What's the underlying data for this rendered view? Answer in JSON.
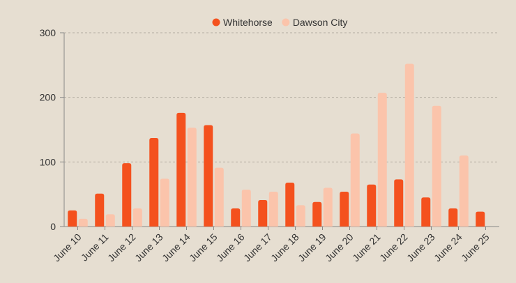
{
  "chart_data": {
    "type": "bar",
    "categories": [
      "June 10",
      "June 11",
      "June 12",
      "June 13",
      "June 14",
      "June 15",
      "June 16",
      "June 17",
      "June 18",
      "June 19",
      "June 20",
      "June 21",
      "June 22",
      "June 23",
      "June 24",
      "June 25"
    ],
    "series": [
      {
        "name": "Whitehorse",
        "color": "#f4511e",
        "values": [
          25,
          51,
          98,
          137,
          176,
          157,
          28,
          41,
          68,
          38,
          54,
          65,
          73,
          45,
          28,
          23
        ]
      },
      {
        "name": "Dawson City",
        "color": "#fbc4ab",
        "values": [
          12,
          19,
          28,
          74,
          153,
          91,
          57,
          54,
          33,
          60,
          144,
          207,
          252,
          187,
          110,
          null
        ]
      }
    ],
    "ylim": [
      0,
      300
    ],
    "yticks": [
      0,
      100,
      200,
      300
    ],
    "grid": true,
    "legend_position": "top-center",
    "title": "",
    "xlabel": "",
    "ylabel": ""
  }
}
